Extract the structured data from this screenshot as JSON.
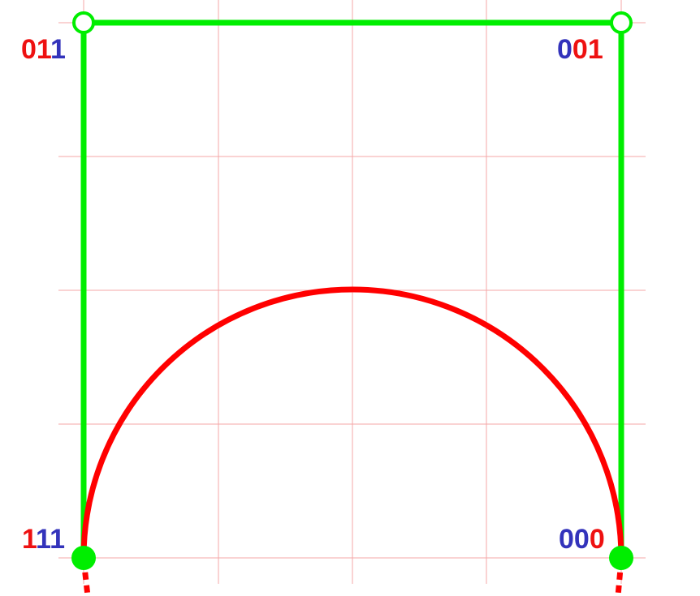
{
  "colors": {
    "grid": "#f4a7a7",
    "polygon": "#00ee00",
    "curve": "#ff0000",
    "bit_red": "#ee1111",
    "bit_blue": "#3333bb",
    "background": "#ffffff"
  },
  "corners": [
    {
      "id": "top-left",
      "point_style": "hollow",
      "label": [
        {
          "ch": "0",
          "color": "red"
        },
        {
          "ch": "1",
          "color": "red"
        },
        {
          "ch": "1",
          "color": "blue"
        }
      ]
    },
    {
      "id": "top-right",
      "point_style": "hollow",
      "label": [
        {
          "ch": "0",
          "color": "blue"
        },
        {
          "ch": "0",
          "color": "red"
        },
        {
          "ch": "1",
          "color": "red"
        }
      ]
    },
    {
      "id": "bottom-left",
      "point_style": "filled",
      "label": [
        {
          "ch": "1",
          "color": "red"
        },
        {
          "ch": "1",
          "color": "blue"
        },
        {
          "ch": "1",
          "color": "blue"
        }
      ]
    },
    {
      "id": "bottom-right",
      "point_style": "filled",
      "label": [
        {
          "ch": "0",
          "color": "blue"
        },
        {
          "ch": "0",
          "color": "blue"
        },
        {
          "ch": "0",
          "color": "red"
        }
      ]
    }
  ]
}
